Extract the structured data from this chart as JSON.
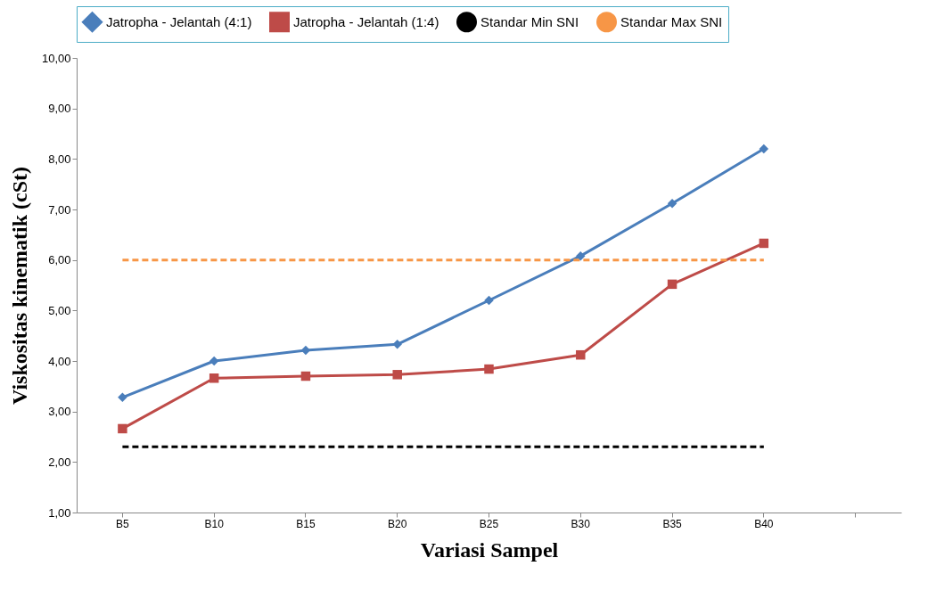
{
  "chart_data": {
    "type": "line",
    "xlabel": "Variasi Sampel",
    "ylabel": "Viskositas kinematik (cSt)",
    "categories": [
      "B5",
      "B10",
      "B15",
      "B20",
      "B25",
      "B30",
      "B35",
      "B40",
      null
    ],
    "series": [
      {
        "name": "Jatropha - Jelantah (4:1)",
        "color": "#4a7ebb",
        "marker": "diamond",
        "line_style": "solid",
        "values": [
          3.28,
          4.0,
          4.21,
          4.33,
          5.2,
          6.08,
          7.12,
          8.2,
          null
        ]
      },
      {
        "name": "Jatropha - Jelantah (1:4)",
        "color": "#be4b48",
        "marker": "square",
        "line_style": "solid",
        "values": [
          2.66,
          3.66,
          3.7,
          3.73,
          3.84,
          4.12,
          5.52,
          6.33,
          null
        ]
      },
      {
        "name": "Standar Min SNI",
        "color": "#000000",
        "marker": "none",
        "line_style": "dashed",
        "values": [
          2.3,
          2.3,
          2.3,
          2.3,
          2.3,
          2.3,
          2.3,
          2.3,
          null
        ]
      },
      {
        "name": "Standar Max SNI",
        "color": "#f79646",
        "marker": "none",
        "line_style": "dashed",
        "values": [
          6.0,
          6.0,
          6.0,
          6.0,
          6.0,
          6.0,
          6.0,
          6.0,
          null
        ]
      }
    ],
    "ylim": [
      1,
      10
    ],
    "yticks": [
      {
        "value": 1,
        "label": "1,00"
      },
      {
        "value": 2,
        "label": "2,00"
      },
      {
        "value": 3,
        "label": "3,00"
      },
      {
        "value": 4,
        "label": "4,00"
      },
      {
        "value": 5,
        "label": "5,00"
      },
      {
        "value": 6,
        "label": "6,00"
      },
      {
        "value": 7,
        "label": "7,00"
      },
      {
        "value": 8,
        "label": "8,00"
      },
      {
        "value": 9,
        "label": "9,00"
      },
      {
        "value": 10,
        "label": "10,00"
      }
    ],
    "grid": false,
    "legend": "top"
  }
}
